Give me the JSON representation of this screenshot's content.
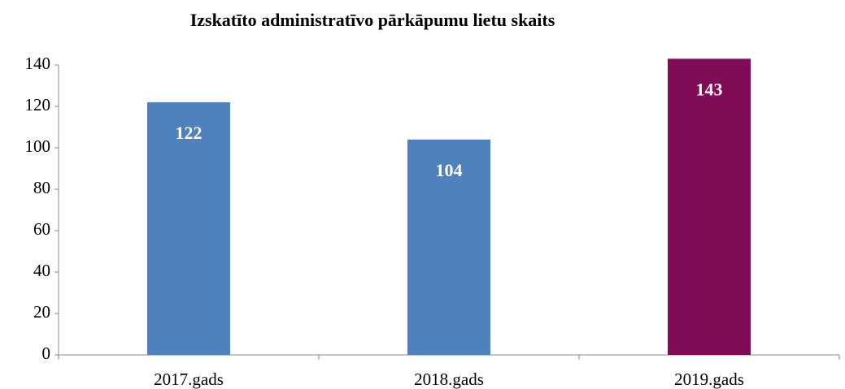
{
  "chart_data": {
    "type": "bar",
    "title": "Izskatīto administratīvo pārkāpumu lietu skaits",
    "categories": [
      "2017.gads",
      "2018.gads",
      "2019.gads"
    ],
    "values": [
      122,
      104,
      143
    ],
    "colors": [
      "#4f81bd",
      "#4f81bd",
      "#800b57"
    ],
    "ylim": [
      0,
      140
    ],
    "yticks": [
      0,
      20,
      40,
      60,
      80,
      100,
      120,
      140
    ],
    "grid": false
  }
}
